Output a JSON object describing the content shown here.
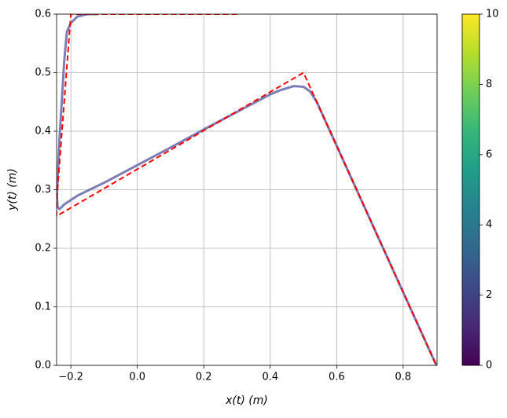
{
  "chart_data": {
    "type": "line",
    "xlabel": "x(t) (m)",
    "ylabel": "y(t) (m)",
    "xlim": [
      -0.243,
      0.902
    ],
    "ylim": [
      0,
      0.6
    ],
    "xticks": [
      {
        "value": -0.2,
        "label": "−0.2"
      },
      {
        "value": 0,
        "label": "0.0"
      },
      0.2,
      0.4,
      0.6,
      0.8
    ],
    "yticks": [
      {
        "value": 0,
        "label": "0.0"
      },
      0.1,
      0.2,
      0.3,
      0.4,
      0.5,
      0.6
    ],
    "grid": true,
    "series": [
      {
        "color": "#6f6fae",
        "dash": false,
        "x": [
          0.9,
          0.8,
          0.7,
          0.6,
          0.54,
          0.52,
          0.5,
          0.47,
          0.43,
          0.4,
          0.3,
          0.2,
          0.1,
          0.0,
          -0.1,
          -0.18,
          -0.22,
          -0.234,
          -0.24,
          -0.242,
          -0.235,
          -0.22,
          -0.212,
          -0.2,
          -0.18,
          -0.15,
          -0.12
        ],
        "values": [
          0.0,
          0.125,
          0.25,
          0.375,
          0.45,
          0.468,
          0.476,
          0.477,
          0.47,
          0.463,
          0.433,
          0.403,
          0.372,
          0.342,
          0.312,
          0.29,
          0.275,
          0.267,
          0.27,
          0.29,
          0.38,
          0.52,
          0.57,
          0.585,
          0.596,
          0.6,
          0.6
        ]
      },
      {
        "color": "#ff0000",
        "dash": true,
        "x": [
          0.3,
          -0.2,
          -0.243,
          -0.243,
          0.5,
          0.9
        ],
        "values": [
          0.6,
          0.6,
          0.28,
          0.255,
          0.5,
          0.0
        ]
      }
    ],
    "colorbar": {
      "lim": [
        0,
        10
      ],
      "ticks": [
        0,
        2,
        4,
        6,
        8,
        10
      ],
      "colormap": [
        "#440154",
        "#482878",
        "#3e4989",
        "#31688e",
        "#26828e",
        "#1f9e89",
        "#35b779",
        "#6ece58",
        "#b5de2b",
        "#fde725"
      ]
    }
  }
}
